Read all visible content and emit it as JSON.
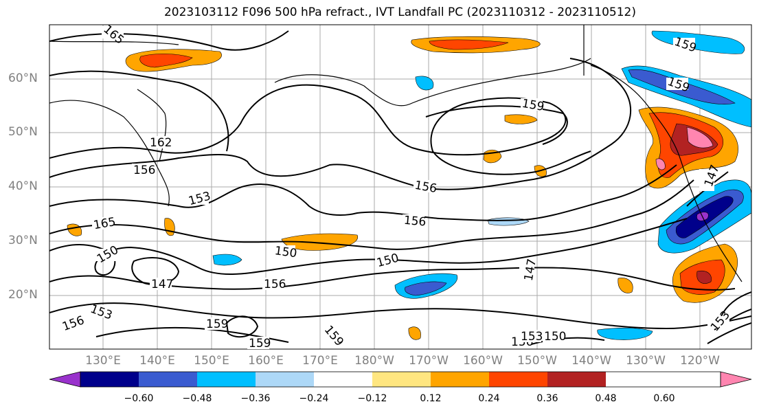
{
  "title": "2023103112 F096 500 hPa refract., IVT Landfall PC (2023110312 - 2023110512)",
  "lat_labels": [
    "60°N",
    "50°N",
    "40°N",
    "30°N",
    "20°N"
  ],
  "lon_labels": [
    "130°E",
    "140°E",
    "150°E",
    "160°E",
    "170°E",
    "180°W",
    "170°W",
    "160°W",
    "150°W",
    "140°W",
    "130°W",
    "120°W"
  ],
  "contour_labels": [
    "165",
    "162",
    "159",
    "156",
    "153",
    "150",
    "147",
    "165",
    "159",
    "156",
    "156",
    "159",
    "150",
    "147",
    "156",
    "153",
    "159",
    "156",
    "150",
    "147",
    "159",
    "156",
    "153",
    "150",
    "153",
    "159"
  ],
  "colorbar": {
    "ticks": [
      "−0.60",
      "−0.48",
      "−0.36",
      "−0.24",
      "−0.12",
      "0.12",
      "0.24",
      "0.36",
      "0.48",
      "0.60"
    ],
    "colors": [
      "#9932cc",
      "#00008b",
      "#3a5bd0",
      "#00bfff",
      "#add8f7",
      "#ffffff",
      "#ffe680",
      "#ffa500",
      "#ff4500",
      "#b22222",
      "#ff85b0"
    ]
  }
}
